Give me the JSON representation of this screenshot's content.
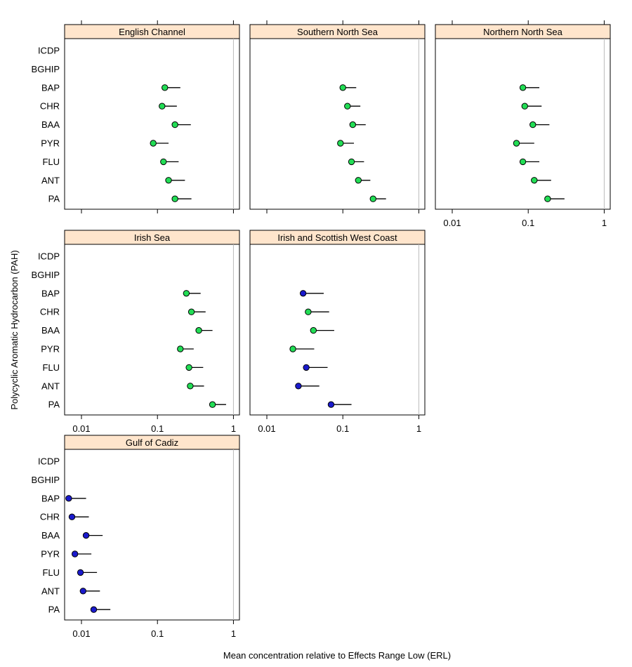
{
  "chart_data": {
    "type": "scatter",
    "subtype": "lattice-dotplot-with-upper-error-bar",
    "xlabel": "Mean concentration relative to Effects Range Low (ERL)",
    "ylabel": "Polycyclic Aromatic Hydrocarbon (PAH)",
    "x_scale": "log10",
    "xlim": [
      0.006,
      1.2
    ],
    "x_ticks": [
      0.01,
      0.1,
      1
    ],
    "x_tick_labels": [
      "0.01",
      "0.1",
      "1"
    ],
    "reference_line_x": 1,
    "categories": [
      "ICDP",
      "BGHIP",
      "BAP",
      "CHR",
      "BAA",
      "PYR",
      "FLU",
      "ANT",
      "PA"
    ],
    "color_legend": {
      "green": "#22dd55",
      "blue": "#1a1acc"
    },
    "panels": [
      {
        "title": "English Channel",
        "points": [
          {
            "label": "BAP",
            "value": 0.125,
            "upper": 0.2,
            "color": "green"
          },
          {
            "label": "CHR",
            "value": 0.115,
            "upper": 0.18,
            "color": "green"
          },
          {
            "label": "BAA",
            "value": 0.17,
            "upper": 0.275,
            "color": "green"
          },
          {
            "label": "PYR",
            "value": 0.088,
            "upper": 0.14,
            "color": "green"
          },
          {
            "label": "FLU",
            "value": 0.12,
            "upper": 0.19,
            "color": "green"
          },
          {
            "label": "ANT",
            "value": 0.14,
            "upper": 0.23,
            "color": "green"
          },
          {
            "label": "PA",
            "value": 0.17,
            "upper": 0.28,
            "color": "green"
          }
        ]
      },
      {
        "title": "Southern North Sea",
        "points": [
          {
            "label": "BAP",
            "value": 0.1,
            "upper": 0.15,
            "color": "green"
          },
          {
            "label": "CHR",
            "value": 0.115,
            "upper": 0.17,
            "color": "green"
          },
          {
            "label": "BAA",
            "value": 0.135,
            "upper": 0.2,
            "color": "green"
          },
          {
            "label": "PYR",
            "value": 0.093,
            "upper": 0.14,
            "color": "green"
          },
          {
            "label": "FLU",
            "value": 0.13,
            "upper": 0.19,
            "color": "green"
          },
          {
            "label": "ANT",
            "value": 0.16,
            "upper": 0.23,
            "color": "green"
          },
          {
            "label": "PA",
            "value": 0.25,
            "upper": 0.37,
            "color": "green"
          }
        ]
      },
      {
        "title": "Northern North Sea",
        "points": [
          {
            "label": "BAP",
            "value": 0.085,
            "upper": 0.14,
            "color": "green"
          },
          {
            "label": "CHR",
            "value": 0.09,
            "upper": 0.15,
            "color": "green"
          },
          {
            "label": "BAA",
            "value": 0.115,
            "upper": 0.19,
            "color": "green"
          },
          {
            "label": "PYR",
            "value": 0.07,
            "upper": 0.12,
            "color": "green"
          },
          {
            "label": "FLU",
            "value": 0.085,
            "upper": 0.14,
            "color": "green"
          },
          {
            "label": "ANT",
            "value": 0.12,
            "upper": 0.2,
            "color": "green"
          },
          {
            "label": "PA",
            "value": 0.18,
            "upper": 0.3,
            "color": "green"
          }
        ]
      },
      {
        "title": "Irish Sea",
        "points": [
          {
            "label": "BAP",
            "value": 0.24,
            "upper": 0.37,
            "color": "green"
          },
          {
            "label": "CHR",
            "value": 0.28,
            "upper": 0.43,
            "color": "green"
          },
          {
            "label": "BAA",
            "value": 0.35,
            "upper": 0.53,
            "color": "green"
          },
          {
            "label": "PYR",
            "value": 0.2,
            "upper": 0.3,
            "color": "green"
          },
          {
            "label": "FLU",
            "value": 0.26,
            "upper": 0.4,
            "color": "green"
          },
          {
            "label": "ANT",
            "value": 0.27,
            "upper": 0.41,
            "color": "green"
          },
          {
            "label": "PA",
            "value": 0.53,
            "upper": 0.8,
            "color": "green"
          }
        ]
      },
      {
        "title": "Irish and Scottish West Coast",
        "points": [
          {
            "label": "BAP",
            "value": 0.03,
            "upper": 0.056,
            "color": "blue"
          },
          {
            "label": "CHR",
            "value": 0.035,
            "upper": 0.066,
            "color": "green"
          },
          {
            "label": "BAA",
            "value": 0.041,
            "upper": 0.077,
            "color": "green"
          },
          {
            "label": "PYR",
            "value": 0.022,
            "upper": 0.042,
            "color": "green"
          },
          {
            "label": "FLU",
            "value": 0.033,
            "upper": 0.063,
            "color": "blue"
          },
          {
            "label": "ANT",
            "value": 0.026,
            "upper": 0.049,
            "color": "blue"
          },
          {
            "label": "PA",
            "value": 0.07,
            "upper": 0.13,
            "color": "blue"
          }
        ]
      },
      {
        "title": "Gulf of Cadiz",
        "points": [
          {
            "label": "BAP",
            "value": 0.0068,
            "upper": 0.0115,
            "color": "blue"
          },
          {
            "label": "CHR",
            "value": 0.0075,
            "upper": 0.0125,
            "color": "blue"
          },
          {
            "label": "BAA",
            "value": 0.0115,
            "upper": 0.019,
            "color": "blue"
          },
          {
            "label": "PYR",
            "value": 0.0082,
            "upper": 0.0135,
            "color": "blue"
          },
          {
            "label": "FLU",
            "value": 0.0097,
            "upper": 0.016,
            "color": "blue"
          },
          {
            "label": "ANT",
            "value": 0.0105,
            "upper": 0.0175,
            "color": "blue"
          },
          {
            "label": "PA",
            "value": 0.0145,
            "upper": 0.024,
            "color": "blue"
          }
        ]
      }
    ]
  }
}
